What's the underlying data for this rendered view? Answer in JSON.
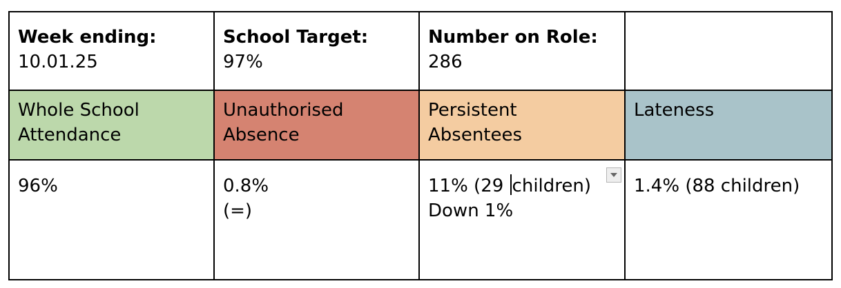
{
  "header": {
    "week": {
      "label": "Week ending:",
      "value": "10.01.25"
    },
    "target": {
      "label": "School Target:",
      "value": "97%"
    },
    "roll": {
      "label": "Number on Role:",
      "value": "286"
    }
  },
  "categories": {
    "attendance": {
      "line1": "Whole School",
      "line2": "Attendance"
    },
    "unauthorised": {
      "line1": "Unauthorised",
      "line2": "Absence"
    },
    "persistent": {
      "line1": "Persistent",
      "line2": "Absentees"
    },
    "lateness": {
      "line1": "Lateness"
    }
  },
  "values": {
    "attendance": "96%",
    "unauthorised": {
      "line1": "0.8%",
      "line2": "(=)"
    },
    "persistent": {
      "line1_a": "11% (29 ",
      "line1_b": "children)",
      "line2": "Down 1%"
    },
    "lateness": "1.4% (88 children)"
  },
  "colors": {
    "attendance": "#bcd8ab",
    "unauthorised": "#d58371",
    "persistent": "#f4cca1",
    "lateness": "#a9c3c9"
  },
  "icons": {
    "dropdown": "chevron-down-icon"
  }
}
